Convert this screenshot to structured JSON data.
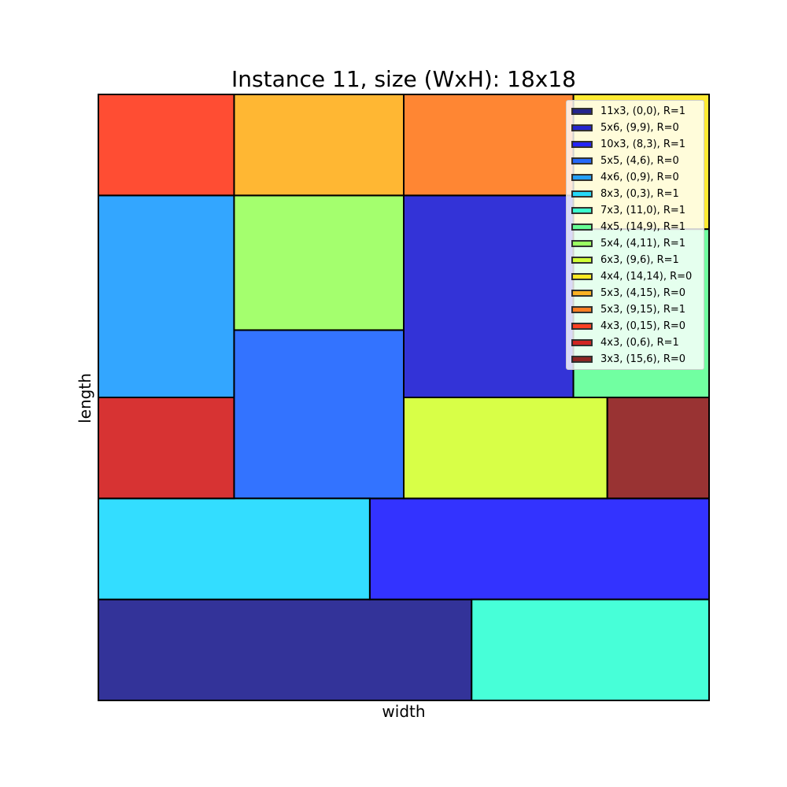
{
  "chart_data": {
    "type": "rectangle-packing",
    "title": "Instance 11, size (WxH): 18x18",
    "xlabel": "width",
    "ylabel": "length",
    "xlim": [
      0,
      18
    ],
    "ylim": [
      0,
      18
    ],
    "legend_position": "top-right",
    "rectangles": [
      {
        "label": "11x3, (0,0), R=1",
        "x": 0,
        "y": 0,
        "w": 11,
        "h": 3,
        "color": "#000080"
      },
      {
        "label": "5x6, (9,9), R=0",
        "x": 9,
        "y": 9,
        "w": 5,
        "h": 6,
        "color": "#0000CD"
      },
      {
        "label": "10x3, (8,3), R=1",
        "x": 8,
        "y": 3,
        "w": 10,
        "h": 3,
        "color": "#0000FF"
      },
      {
        "label": "5x5, (4,6), R=0",
        "x": 4,
        "y": 6,
        "w": 5,
        "h": 5,
        "color": "#0050FF"
      },
      {
        "label": "4x6, (0,9), R=0",
        "x": 0,
        "y": 9,
        "w": 4,
        "h": 6,
        "color": "#0090FF"
      },
      {
        "label": "8x3, (0,3), R=1",
        "x": 0,
        "y": 3,
        "w": 8,
        "h": 3,
        "color": "#00D4FF"
      },
      {
        "label": "7x3, (11,0), R=1",
        "x": 11,
        "y": 0,
        "w": 7,
        "h": 3,
        "color": "#19FFCE"
      },
      {
        "label": "4x5, (14,9), R=1",
        "x": 14,
        "y": 9,
        "w": 4,
        "h": 5,
        "color": "#4DFF8A"
      },
      {
        "label": "5x4, (4,11), R=1",
        "x": 4,
        "y": 11,
        "w": 5,
        "h": 4,
        "color": "#8DFF4A"
      },
      {
        "label": "6x3, (9,6), R=1",
        "x": 9,
        "y": 6,
        "w": 6,
        "h": 3,
        "color": "#CEFF19"
      },
      {
        "label": "4x4, (14,14), R=0",
        "x": 14,
        "y": 14,
        "w": 4,
        "h": 4,
        "color": "#FFE600"
      },
      {
        "label": "5x3, (4,15), R=0",
        "x": 4,
        "y": 15,
        "w": 5,
        "h": 3,
        "color": "#FFA500"
      },
      {
        "label": "5x3, (9,15), R=1",
        "x": 9,
        "y": 15,
        "w": 5,
        "h": 3,
        "color": "#FF6800"
      },
      {
        "label": "4x3, (0,15), R=0",
        "x": 0,
        "y": 15,
        "w": 4,
        "h": 3,
        "color": "#FF2000"
      },
      {
        "label": "4x3, (0,6), R=1",
        "x": 0,
        "y": 6,
        "w": 4,
        "h": 3,
        "color": "#CD0000"
      },
      {
        "label": "3x3, (15,6), R=0",
        "x": 15,
        "y": 6,
        "w": 3,
        "h": 3,
        "color": "#800000"
      }
    ]
  }
}
